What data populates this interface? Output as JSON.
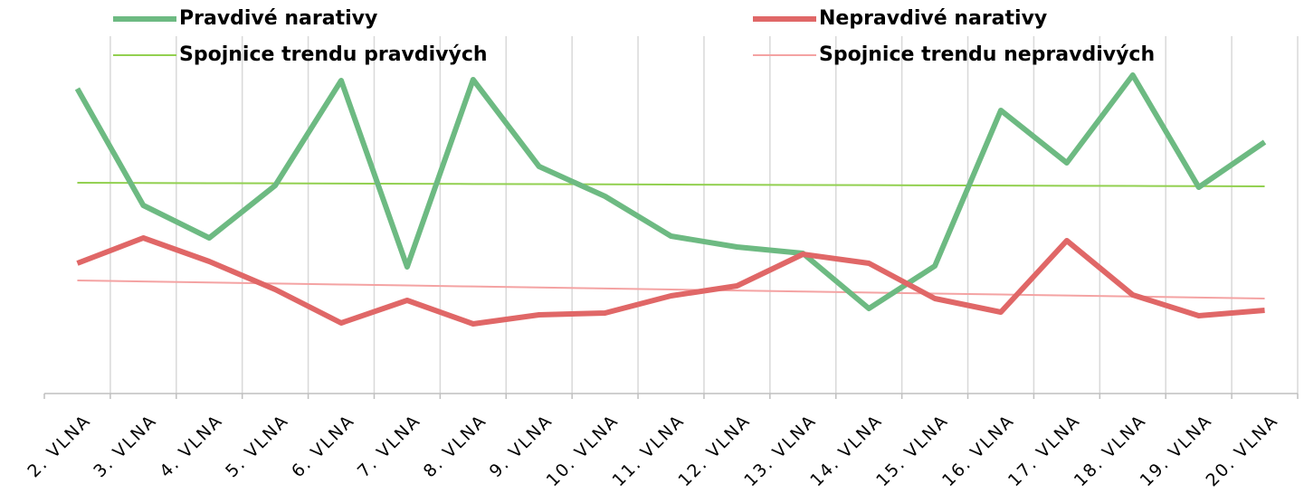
{
  "chart_data": {
    "type": "line",
    "categories": [
      "2. VLNA",
      "3. VLNA",
      "4. VLNA",
      "5. VLNA",
      "6. VLNA",
      "7. VLNA",
      "8. VLNA",
      "9. VLNA",
      "10. VLNA",
      "11. VLNA",
      "12. VLNA",
      "13. VLNA",
      "14. VLNA",
      "15. VLNA",
      "16. VLNA",
      "17. VLNA",
      "18. VLNA",
      "19. VLNA",
      "20. VLNA"
    ],
    "series": [
      {
        "name": "Pravdivé narativy",
        "color": "#6dba82",
        "values": [
          84.25,
          52,
          43,
          57.5,
          86.5,
          35,
          86.75,
          62.75,
          54.5,
          43.5,
          40.5,
          38.75,
          23.5,
          35.25,
          78.25,
          63.75,
          88,
          57,
          69.5
        ]
      },
      {
        "name": "Nepravdivé narativy",
        "color": "#e06767",
        "values": [
          36,
          43,
          36.5,
          28.75,
          19.5,
          25.75,
          19.25,
          21.75,
          22.25,
          27,
          29.75,
          38.5,
          36,
          26.25,
          22.5,
          42.25,
          27.25,
          21.5,
          23
        ]
      },
      {
        "name": "Spojnice trendu pravdivých",
        "color": "#92d050",
        "values": [
          58.25,
          58.19,
          58.14,
          58.08,
          58.03,
          57.97,
          57.92,
          57.86,
          57.81,
          57.75,
          57.69,
          57.64,
          57.58,
          57.53,
          57.47,
          57.42,
          57.36,
          57.31,
          57.25
        ]
      },
      {
        "name": "Spojnice trendu nepravdivých",
        "color": "#f4a3a3",
        "values": [
          31.25,
          30.97,
          30.69,
          30.42,
          30.14,
          29.86,
          29.58,
          29.31,
          29.03,
          28.75,
          28.47,
          28.19,
          27.92,
          27.64,
          27.36,
          27.08,
          26.81,
          26.53,
          26.25
        ]
      }
    ],
    "ylim": [
      0,
      100
    ],
    "grid": true,
    "legend": "top"
  }
}
